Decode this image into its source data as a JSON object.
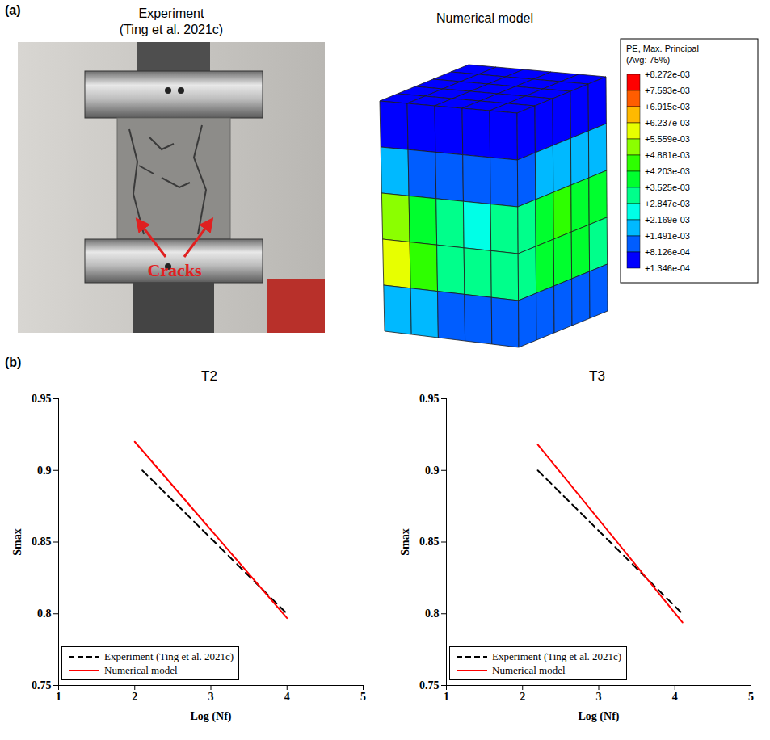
{
  "panel_a": {
    "label": "(a)",
    "experiment": {
      "title": "Experiment",
      "citation": "(Ting et al. 2021c)",
      "annotation": "Cracks"
    },
    "model": {
      "title": "Numerical model",
      "contour_legend": {
        "title": "PE, Max. Principal",
        "subtitle": "(Avg: 75%)",
        "levels": [
          {
            "value": 0.008272,
            "label": "+8.272e-03"
          },
          {
            "value": 0.007593,
            "label": "+7.593e-03"
          },
          {
            "value": 0.006915,
            "label": "+6.915e-03"
          },
          {
            "value": 0.006237,
            "label": "+6.237e-03"
          },
          {
            "value": 0.005559,
            "label": "+5.559e-03"
          },
          {
            "value": 0.004881,
            "label": "+4.881e-03"
          },
          {
            "value": 0.004203,
            "label": "+4.203e-03"
          },
          {
            "value": 0.003525,
            "label": "+3.525e-03"
          },
          {
            "value": 0.002847,
            "label": "+2.847e-03"
          },
          {
            "value": 0.002169,
            "label": "+2.169e-03"
          },
          {
            "value": 0.001491,
            "label": "+1.491e-03"
          },
          {
            "value": 0.0008126,
            "label": "+8.126e-04"
          },
          {
            "value": 0.0001346,
            "label": "+1.346e-04"
          }
        ],
        "colors": [
          "#ff0000",
          "#ff5d00",
          "#ffb900",
          "#e7ff00",
          "#8bff00",
          "#2eff00",
          "#00ff2e",
          "#00ff8b",
          "#00ffe7",
          "#00b9ff",
          "#005dff",
          "#0000ff"
        ]
      },
      "top_face": [
        [
          0.0002,
          0.0002,
          0.0002,
          0.0002,
          0.0002
        ],
        [
          0.0002,
          0.0003,
          0.0003,
          0.0003,
          0.0002
        ],
        [
          0.0003,
          0.0003,
          0.0004,
          0.0003,
          0.0003
        ],
        [
          0.0003,
          0.0004,
          0.0004,
          0.0004,
          0.0003
        ],
        [
          0.0004,
          0.0004,
          0.0005,
          0.0004,
          0.0004
        ]
      ],
      "front_face": [
        [
          0.0004,
          0.0004,
          0.0005,
          0.0005,
          0.0005
        ],
        [
          0.0017,
          0.0014,
          0.0012,
          0.0012,
          0.0013
        ],
        [
          0.0052,
          0.0038,
          0.003,
          0.0028,
          0.0032
        ],
        [
          0.0062,
          0.0045,
          0.0034,
          0.003,
          0.0033
        ],
        [
          0.002,
          0.0016,
          0.0012,
          0.0011,
          0.0012
        ]
      ],
      "right_face": [
        [
          0.0005,
          0.0004,
          0.0004,
          0.0003,
          0.0003
        ],
        [
          0.0013,
          0.0016,
          0.0018,
          0.0017,
          0.0015
        ],
        [
          0.0032,
          0.004,
          0.0046,
          0.0042,
          0.0036
        ],
        [
          0.003,
          0.0036,
          0.004,
          0.0037,
          0.0032
        ],
        [
          0.001,
          0.0012,
          0.0013,
          0.0012,
          0.001
        ]
      ]
    }
  },
  "panel_b_label": "(b)",
  "chart_data": [
    {
      "type": "line",
      "title": "T2",
      "x_label": "Log (Nf)",
      "y_label": "Smax",
      "xlim": [
        1,
        5
      ],
      "xticks": [
        1,
        2,
        3,
        4,
        5
      ],
      "ylim": [
        0.75,
        0.95
      ],
      "yticks": [
        0.75,
        0.8,
        0.85,
        0.9,
        0.95
      ],
      "legend": "bottom-left",
      "series": [
        {
          "name": "Experiment (Ting et al. 2021c)",
          "color": "#000000",
          "line_style": "dashed",
          "x": [
            2.1,
            4.0
          ],
          "values": [
            0.9,
            0.8
          ]
        },
        {
          "name": "Numerical model",
          "color": "#ff0000",
          "line_style": "solid",
          "x": [
            2.0,
            4.0
          ],
          "values": [
            0.92,
            0.797
          ]
        }
      ]
    },
    {
      "type": "line",
      "title": "T3",
      "x_label": "Log (Nf)",
      "y_label": "Smax",
      "xlim": [
        1,
        5
      ],
      "xticks": [
        1,
        2,
        3,
        4,
        5
      ],
      "ylim": [
        0.75,
        0.95
      ],
      "yticks": [
        0.75,
        0.8,
        0.85,
        0.9,
        0.95
      ],
      "legend": "bottom-left",
      "series": [
        {
          "name": "Experiment (Ting et al. 2021c)",
          "color": "#000000",
          "line_style": "dashed",
          "x": [
            2.2,
            4.1
          ],
          "values": [
            0.9,
            0.8
          ]
        },
        {
          "name": "Numerical model",
          "color": "#ff0000",
          "line_style": "solid",
          "x": [
            2.2,
            4.1
          ],
          "values": [
            0.918,
            0.794
          ]
        }
      ]
    }
  ]
}
